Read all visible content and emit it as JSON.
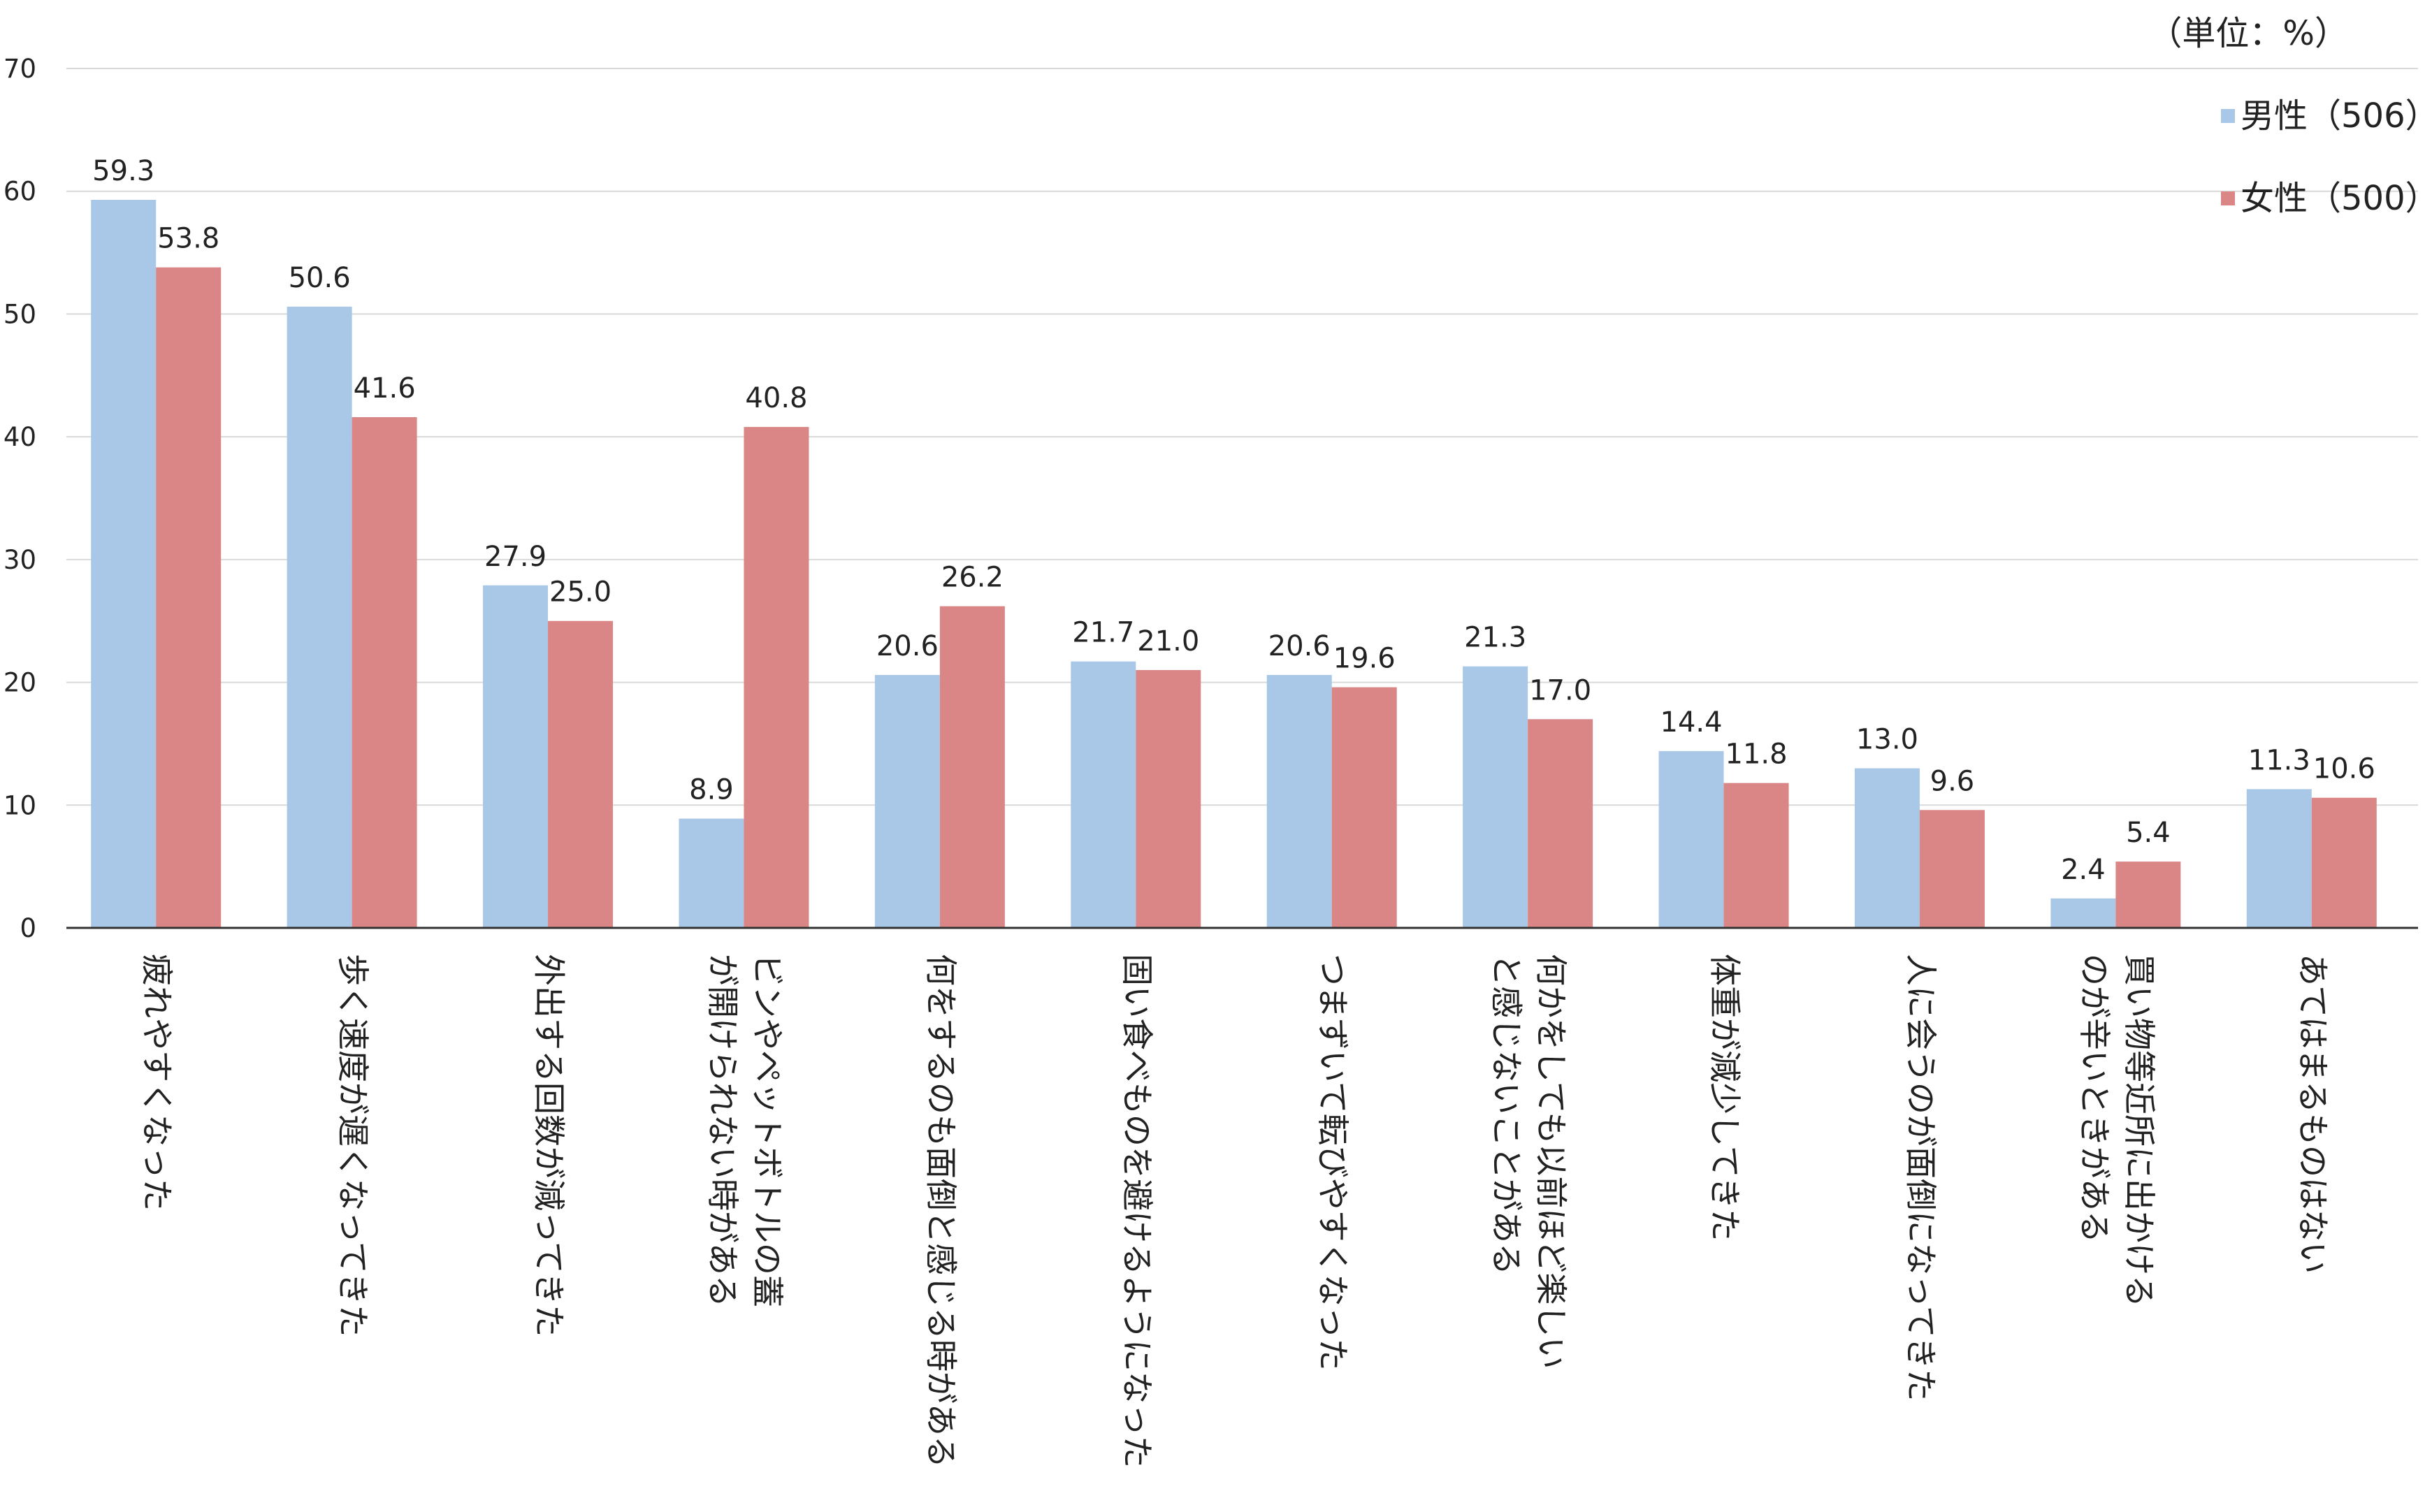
{
  "unit_label": "（単位：%）",
  "chart_data": {
    "type": "bar",
    "ylim": [
      0,
      70
    ],
    "yticks": [
      0,
      10,
      20,
      30,
      40,
      50,
      60,
      70
    ],
    "grid": true,
    "legend_position": "top-right",
    "colors": {
      "男性（506）": "#a9c7e6",
      "女性（500）": "#da8686"
    },
    "categories": [
      [
        "疲れやすくなった"
      ],
      [
        "歩く速度が遅くなってきた"
      ],
      [
        "外出する回数が減ってきた"
      ],
      [
        "ビンやペットボトルの蓋",
        "が開けられない時がある"
      ],
      [
        "何をするのも面倒と感じる時がある"
      ],
      [
        "固い食べものを避けるようになった"
      ],
      [
        "つまずいて転びやすくなった"
      ],
      [
        "何かをしても以前ほど楽しい",
        "と感じないことがある"
      ],
      [
        "体重が減少してきた"
      ],
      [
        "人に会うのが面倒になってきた"
      ],
      [
        "買い物等近所に出かける",
        "のが辛いときがある"
      ],
      [
        "あてはまるものはない"
      ]
    ],
    "series": [
      {
        "name": "男性（506）",
        "values": [
          59.3,
          50.6,
          27.9,
          8.9,
          20.6,
          21.7,
          20.6,
          21.3,
          14.4,
          13.0,
          2.4,
          11.3
        ]
      },
      {
        "name": "女性（500）",
        "values": [
          53.8,
          41.6,
          25.0,
          40.8,
          26.2,
          21.0,
          19.6,
          17.0,
          11.8,
          9.6,
          5.4,
          10.6
        ]
      }
    ]
  }
}
